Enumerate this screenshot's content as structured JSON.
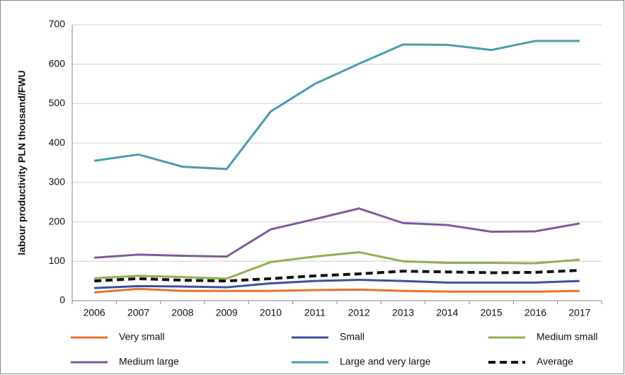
{
  "chart_data": {
    "type": "line",
    "y_label": "labour productivity PLN thousand/FWU",
    "categories": [
      "2006",
      "2007",
      "2008",
      "2009",
      "2010",
      "2011",
      "2012",
      "2013",
      "2014",
      "2015",
      "2016",
      "2017"
    ],
    "series": [
      {
        "name": "Very small",
        "color": "#e8712a",
        "values": [
          21,
          30,
          25,
          25,
          25,
          27,
          28,
          25,
          23,
          23,
          23,
          25
        ]
      },
      {
        "name": "Small",
        "color": "#3d4fa0",
        "values": [
          32,
          37,
          36,
          34,
          44,
          50,
          53,
          50,
          46,
          46,
          46,
          50
        ]
      },
      {
        "name": "Medium small",
        "color": "#8fb04f",
        "values": [
          57,
          63,
          60,
          56,
          98,
          112,
          123,
          100,
          96,
          96,
          95,
          104
        ]
      },
      {
        "name": "Medium large",
        "color": "#7e5a9b",
        "values": [
          109,
          117,
          114,
          112,
          181,
          207,
          234,
          197,
          192,
          175,
          176,
          196
        ]
      },
      {
        "name": "Large and very large",
        "color": "#4a9bb0",
        "values": [
          355,
          371,
          340,
          334,
          480,
          550,
          601,
          650,
          649,
          636,
          659,
          659
        ]
      },
      {
        "name": "Average",
        "color": "#111111",
        "dashed": true,
        "values": [
          50,
          56,
          52,
          50,
          56,
          63,
          68,
          75,
          73,
          71,
          72,
          77
        ]
      }
    ],
    "ylim": [
      0,
      700
    ],
    "yticks": [
      0,
      100,
      200,
      300,
      400,
      500,
      600,
      700
    ],
    "grid": true,
    "legend": "bottom"
  }
}
